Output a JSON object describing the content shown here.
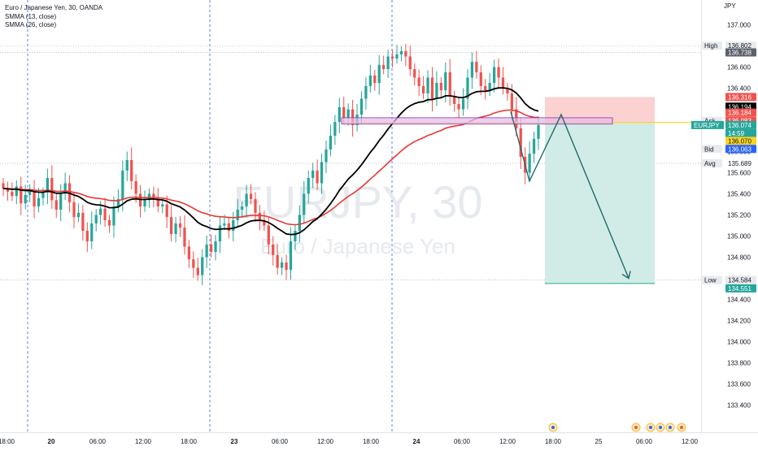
{
  "legend": {
    "title": "Euro / Japanese Yen, 30, OANDA",
    "studies": [
      "SMMA (13, close)",
      "SMMA (26, close)"
    ]
  },
  "watermark": {
    "symbol": "EURJPY, 30",
    "name": "Euro / Japanese Yen"
  },
  "colors": {
    "up": "#26a69a",
    "down": "#ef5350",
    "smma13": "#000000",
    "smma26": "#e53935",
    "grid_dash": "#2962ff",
    "target_zone": "#d1ece6",
    "stop_zone": "#fbd1d1",
    "box_fill": "#e1bee7",
    "box_stroke": "#9c27b0",
    "arrow": "#1e6b6a",
    "ask_line": "#f9d423"
  },
  "chart_data": {
    "type": "candlestick",
    "symbol": "EURJPY",
    "interval": "30",
    "ylim": [
      133.25,
      137.05
    ],
    "y_axis_unit": "JPY",
    "y_ticks": [
      137.0,
      136.8,
      136.6,
      136.4,
      136.2,
      136.0,
      135.8,
      135.6,
      135.4,
      135.2,
      135.0,
      134.8,
      134.6,
      134.4,
      134.2,
      134.0,
      133.8,
      133.6,
      133.4
    ],
    "x_ticks": [
      "18:00",
      "20",
      "06:00",
      "12:00",
      "18:00",
      "23",
      "06:00",
      "12:00",
      "18:00",
      "24",
      "06:00",
      "12:00",
      "18:00",
      "25",
      "06:00",
      "12:00"
    ],
    "session_breaks": [
      "20",
      "23",
      "24"
    ],
    "candles_closes": [
      135.45,
      135.42,
      135.38,
      135.47,
      135.31,
      135.39,
      135.44,
      135.28,
      135.36,
      135.41,
      135.55,
      135.34,
      135.25,
      135.4,
      135.5,
      135.32,
      135.18,
      135.22,
      135.05,
      134.95,
      135.12,
      135.2,
      135.26,
      135.15,
      135.1,
      135.28,
      135.35,
      135.62,
      135.72,
      135.52,
      135.4,
      135.28,
      135.34,
      135.4,
      135.36,
      135.28,
      135.3,
      135.18,
      135.02,
      135.12,
      135.08,
      134.9,
      134.78,
      134.7,
      134.63,
      134.8,
      134.92,
      134.85,
      134.95,
      135.1,
      135.12,
      135.05,
      135.15,
      135.25,
      135.28,
      135.4,
      135.35,
      135.22,
      135.15,
      135.1,
      134.92,
      134.82,
      134.7,
      134.75,
      134.68,
      134.95,
      135.05,
      135.2,
      135.4,
      135.55,
      135.62,
      135.5,
      135.7,
      135.82,
      135.95,
      136.08,
      136.22,
      136.12,
      136.2,
      136.05,
      136.15,
      136.3,
      136.42,
      136.52,
      136.45,
      136.62,
      136.58,
      136.7,
      136.68,
      136.72,
      136.75,
      136.7,
      136.58,
      136.5,
      136.42,
      136.35,
      136.5,
      136.3,
      136.45,
      136.38,
      136.55,
      136.32,
      136.25,
      136.2,
      136.3,
      136.5,
      136.65,
      136.55,
      136.42,
      136.38,
      136.45,
      136.6,
      136.5,
      136.4,
      136.35,
      136.2,
      136.02,
      135.75,
      135.6,
      135.78,
      135.92,
      136.05
    ],
    "price_labels": {
      "high_label": "High",
      "high": 136.802,
      "prev_high": 136.738,
      "stop": 136.316,
      "smma13": 136.194,
      "smma26": 136.184,
      "ask_label": "Ask",
      "ask": 136.083,
      "last_symbol": "EURJPY",
      "last": 136.074,
      "countdown": "14:59",
      "entry": 136.07,
      "bid_label": "Bid",
      "bid": 136.063,
      "avg_label": "Avg",
      "avg": 135.689,
      "low_label": "Low",
      "low": 134.584,
      "target": 134.551
    },
    "position_tool": {
      "type": "short",
      "entry": 136.07,
      "stop": 136.316,
      "target": 134.551
    },
    "zone_box": {
      "top": 136.12,
      "bottom": 136.06
    },
    "projection_path": [
      136.18,
      135.52,
      136.15,
      134.6
    ]
  }
}
